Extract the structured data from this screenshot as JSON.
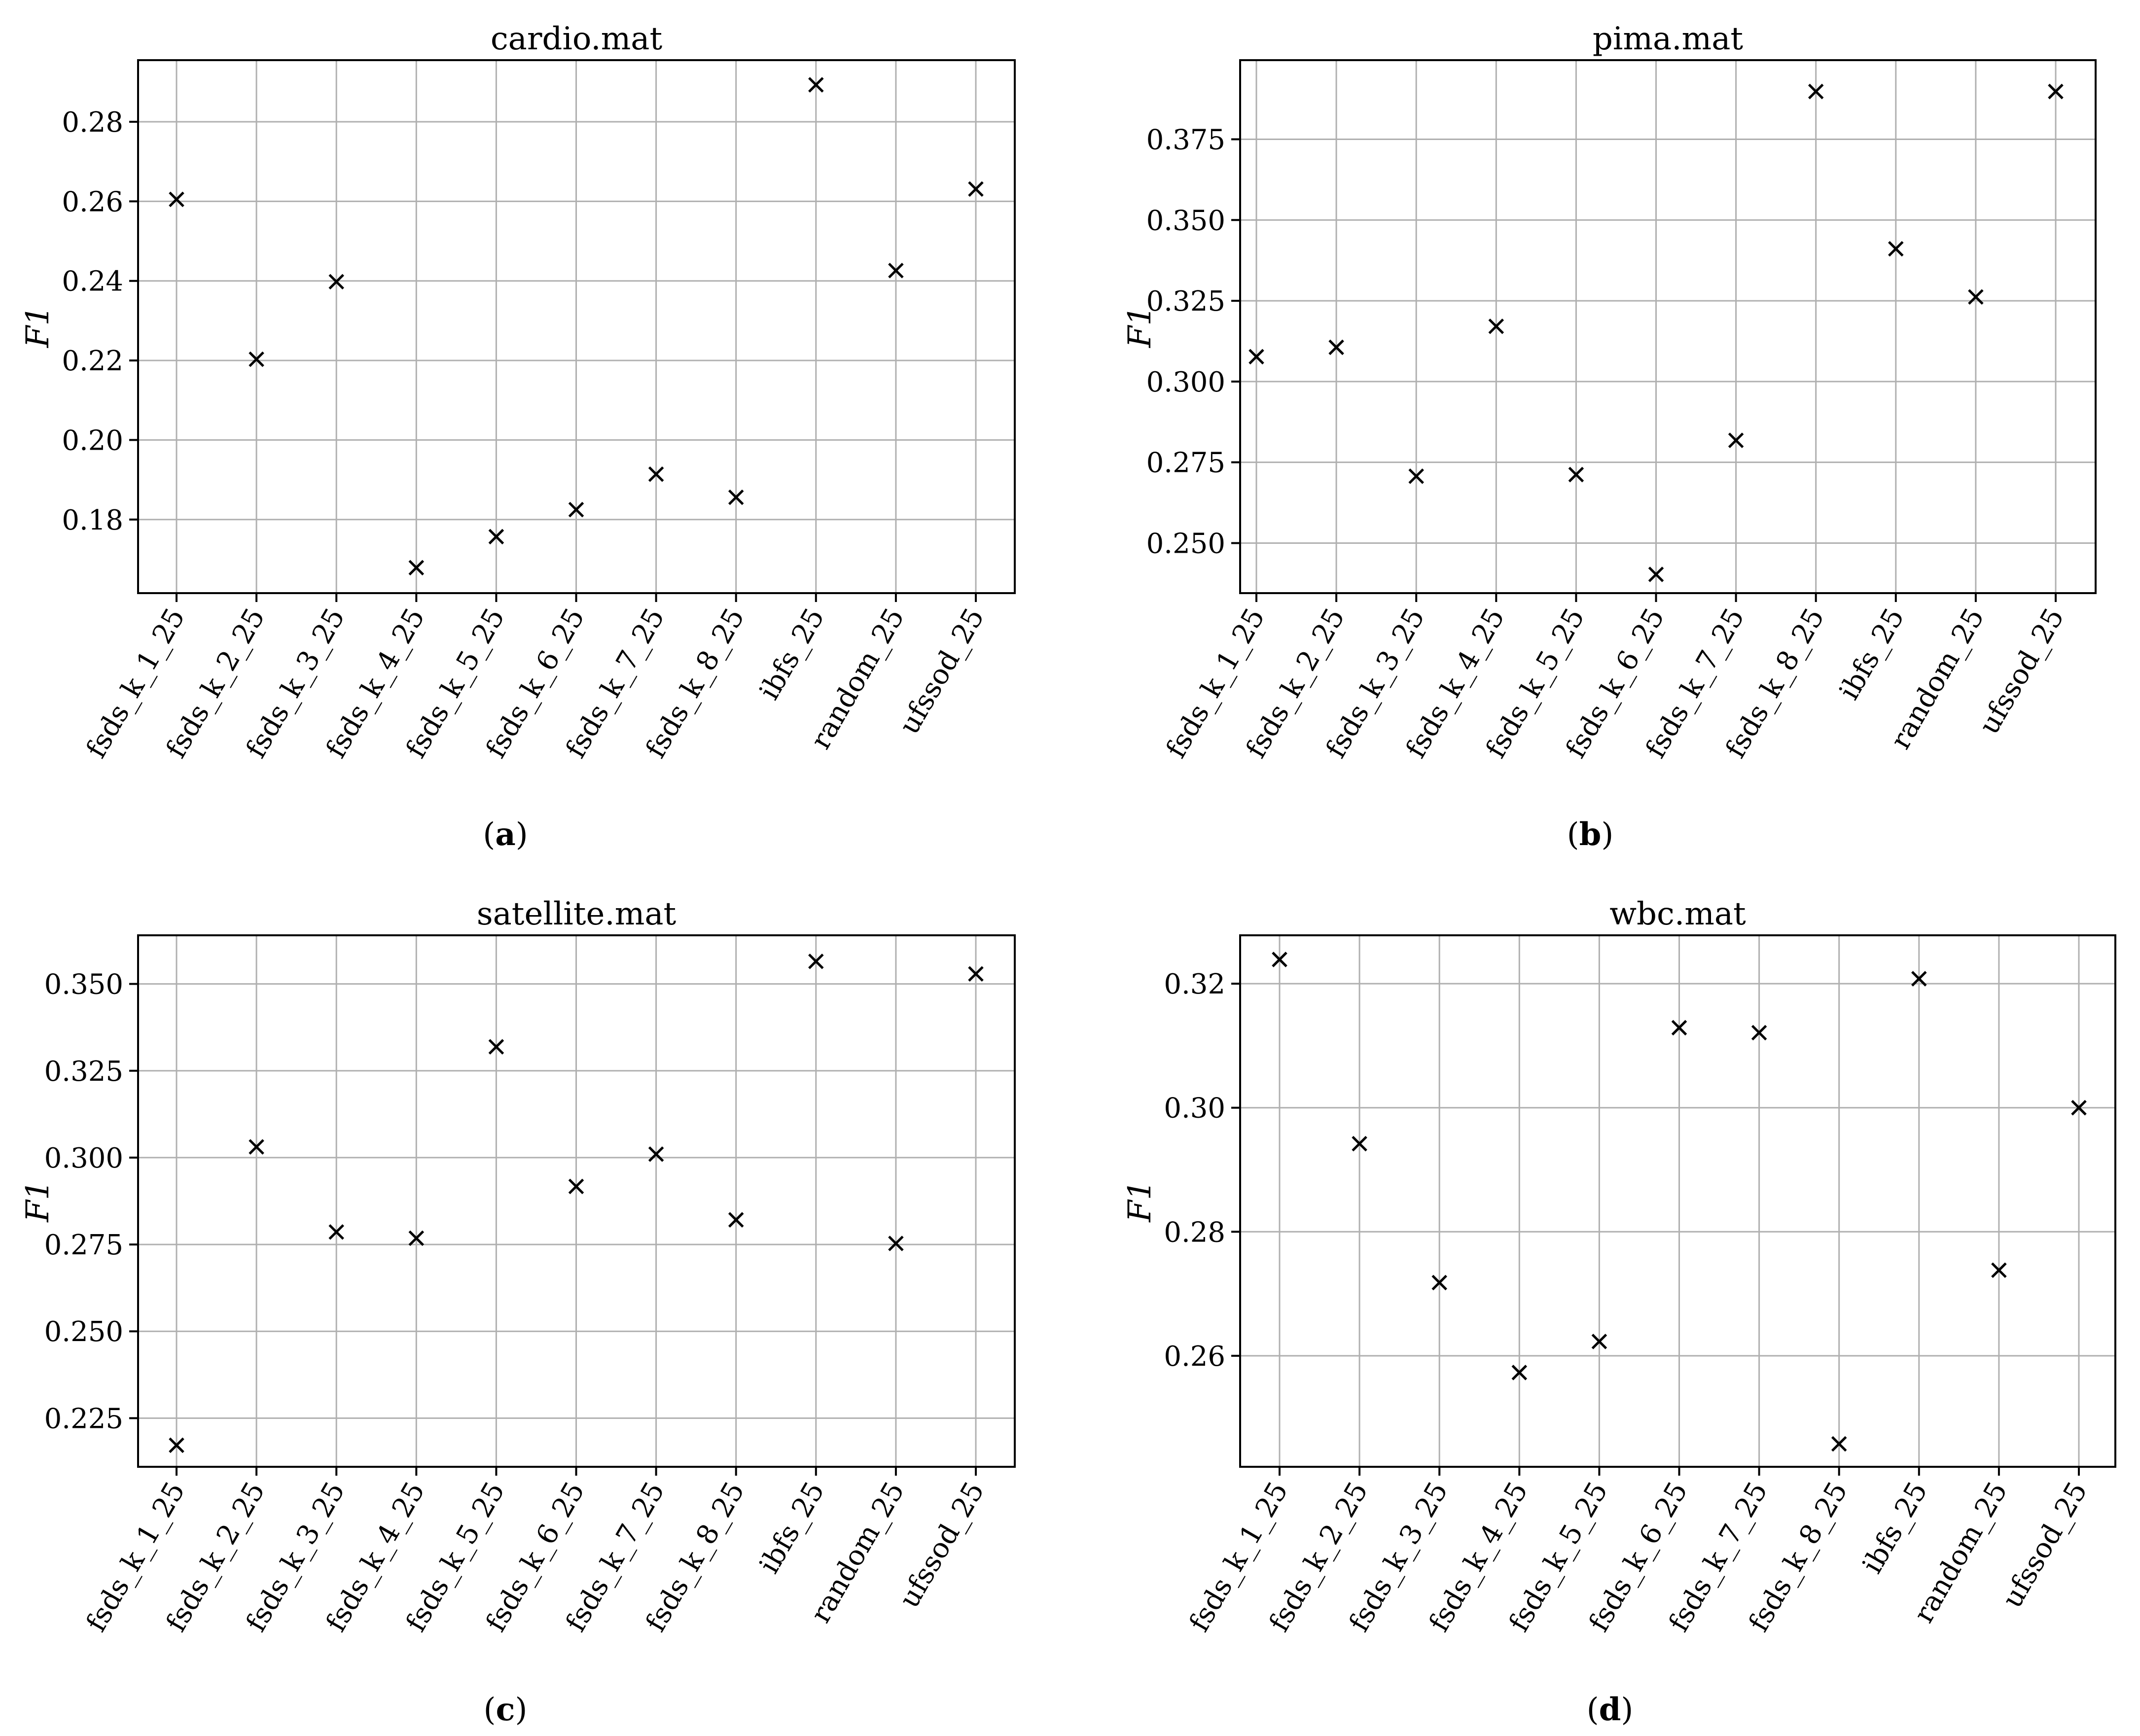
{
  "chart_data": [
    {
      "type": "scatter",
      "panel": "a",
      "title": "cardio.mat",
      "ylabel": "F1",
      "xlabel": "",
      "categories": [
        "fsds_k_1_25",
        "fsds_k_2_25",
        "fsds_k_3_25",
        "fsds_k_4_25",
        "fsds_k_5_25",
        "fsds_k_6_25",
        "fsds_k_7_25",
        "fsds_k_8_25",
        "ibfs_25",
        "random_25",
        "ufssod_25"
      ],
      "values": [
        0.2605,
        0.2203,
        0.2398,
        0.1679,
        0.1757,
        0.1825,
        0.1914,
        0.1856,
        0.2893,
        0.2426,
        0.2631
      ],
      "ylim": [
        0.1615,
        0.2955
      ],
      "yticks": [
        "0.18",
        "0.20",
        "0.22",
        "0.24",
        "0.26",
        "0.28"
      ],
      "ytick_values": [
        0.18,
        0.2,
        0.22,
        0.24,
        0.26,
        0.28
      ],
      "marker": "x",
      "grid": true
    },
    {
      "type": "scatter",
      "panel": "b",
      "title": "pima.mat",
      "ylabel": "F1",
      "xlabel": "",
      "categories": [
        "fsds_k_1_25",
        "fsds_k_2_25",
        "fsds_k_3_25",
        "fsds_k_4_25",
        "fsds_k_5_25",
        "fsds_k_6_25",
        "fsds_k_7_25",
        "fsds_k_8_25",
        "ibfs_25",
        "random_25",
        "ufssod_25"
      ],
      "values": [
        0.3077,
        0.3106,
        0.2707,
        0.3171,
        0.2712,
        0.2403,
        0.2818,
        0.3898,
        0.3411,
        0.3262,
        0.3898
      ],
      "ylim": [
        0.2345,
        0.3995
      ],
      "yticks": [
        "0.250",
        "0.275",
        "0.300",
        "0.325",
        "0.350",
        "0.375"
      ],
      "ytick_values": [
        0.25,
        0.275,
        0.3,
        0.325,
        0.35,
        0.375
      ],
      "marker": "x",
      "grid": true
    },
    {
      "type": "scatter",
      "panel": "c",
      "title": "satellite.mat",
      "ylabel": "F1",
      "xlabel": "",
      "categories": [
        "fsds_k_1_25",
        "fsds_k_2_25",
        "fsds_k_3_25",
        "fsds_k_4_25",
        "fsds_k_5_25",
        "fsds_k_6_25",
        "fsds_k_7_25",
        "fsds_k_8_25",
        "ibfs_25",
        "random_25",
        "ufssod_25"
      ],
      "values": [
        0.2172,
        0.3031,
        0.2786,
        0.2768,
        0.3319,
        0.2917,
        0.301,
        0.2821,
        0.3565,
        0.2753,
        0.3529
      ],
      "ylim": [
        0.211,
        0.364
      ],
      "yticks": [
        "0.225",
        "0.250",
        "0.275",
        "0.300",
        "0.325",
        "0.350"
      ],
      "ytick_values": [
        0.225,
        0.25,
        0.275,
        0.3,
        0.325,
        0.35
      ],
      "marker": "x",
      "grid": true
    },
    {
      "type": "scatter",
      "panel": "d",
      "title": "wbc.mat",
      "ylabel": "F1",
      "xlabel": "",
      "categories": [
        "fsds_k_1_25",
        "fsds_k_2_25",
        "fsds_k_3_25",
        "fsds_k_4_25",
        "fsds_k_5_25",
        "fsds_k_6_25",
        "fsds_k_7_25",
        "fsds_k_8_25",
        "ibfs_25",
        "random_25",
        "ufssod_25"
      ],
      "values": [
        0.3239,
        0.2942,
        0.2718,
        0.2573,
        0.2623,
        0.3129,
        0.3121,
        0.2458,
        0.3208,
        0.2738,
        0.3
      ],
      "ylim": [
        0.2421,
        0.3278
      ],
      "yticks": [
        "0.26",
        "0.28",
        "0.30",
        "0.32"
      ],
      "ytick_values": [
        0.26,
        0.28,
        0.3,
        0.32
      ],
      "marker": "x",
      "grid": true
    }
  ],
  "captions": [
    "a",
    "b",
    "c",
    "d"
  ]
}
